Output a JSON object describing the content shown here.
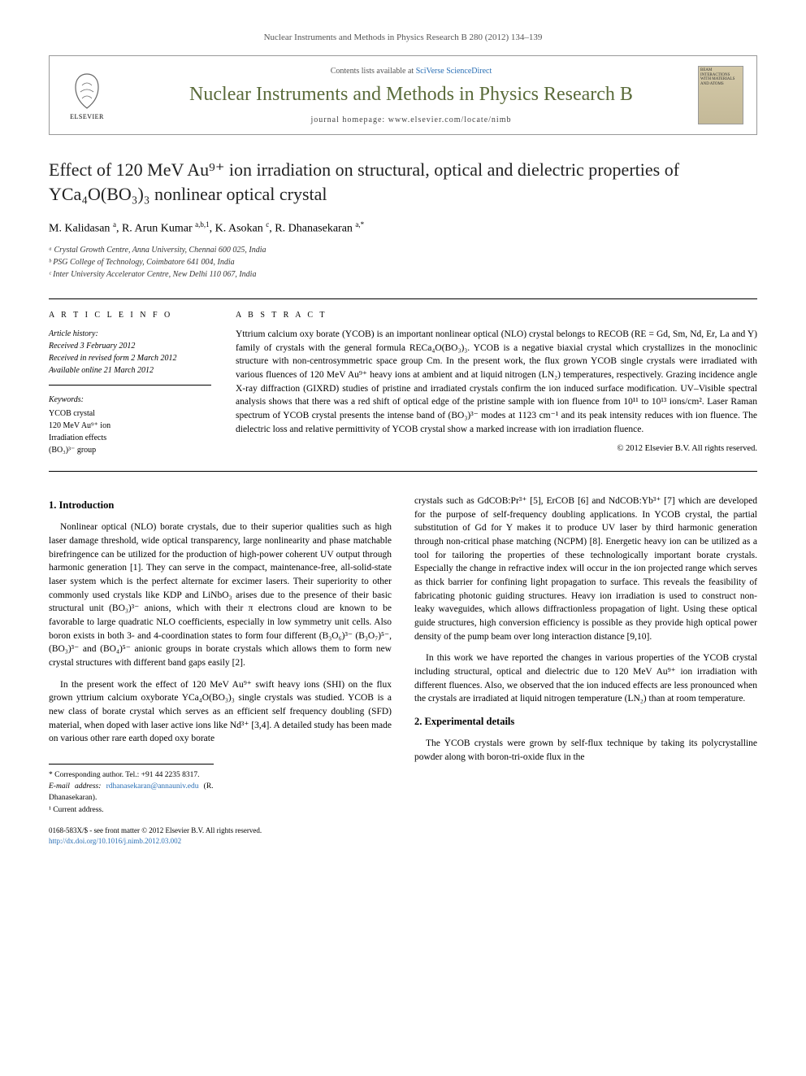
{
  "journal_ref": "Nuclear Instruments and Methods in Physics Research B 280 (2012) 134–139",
  "header": {
    "contents_prefix": "Contents lists available at ",
    "contents_link": "SciVerse ScienceDirect",
    "journal_title": "Nuclear Instruments and Methods in Physics Research B",
    "homepage_label": "journal homepage: ",
    "homepage_url": "www.elsevier.com/locate/nimb",
    "publisher": "ELSEVIER",
    "cover_text": "BEAM INTERACTIONS WITH MATERIALS AND ATOMS"
  },
  "title": "Effect of 120 MeV Au⁹⁺ ion irradiation on structural, optical and dielectric properties of YCa₄O(BO₃)₃ nonlinear optical crystal",
  "authors_html": "M. Kalidasan <sup>a</sup>, R. Arun Kumar <sup>a,b,1</sup>, K. Asokan <sup>c</sup>, R. Dhanasekaran <sup>a,*</sup>",
  "affiliations": [
    "ᵃ Crystal Growth Centre, Anna University, Chennai 600 025, India",
    "ᵇ PSG College of Technology, Coimbatore 641 004, India",
    "ᶜ Inter University Accelerator Centre, New Delhi 110 067, India"
  ],
  "article_info": {
    "heading": "A R T I C L E   I N F O",
    "history_label": "Article history:",
    "history": [
      "Received 3 February 2012",
      "Received in revised form 2 March 2012",
      "Available online 21 March 2012"
    ],
    "keywords_label": "Keywords:",
    "keywords": [
      "YCOB crystal",
      "120 MeV Au⁹⁺ ion",
      "Irradiation effects",
      "(BO₃)³⁻ group"
    ]
  },
  "abstract": {
    "heading": "A B S T R A C T",
    "text": "Yttrium calcium oxy borate (YCOB) is an important nonlinear optical (NLO) crystal belongs to RECOB (RE = Gd, Sm, Nd, Er, La and Y) family of crystals with the general formula RECa₄O(BO₃)₃. YCOB is a negative biaxial crystal which crystallizes in the monoclinic structure with non-centrosymmetric space group Cm. In the present work, the flux grown YCOB single crystals were irradiated with various fluences of 120 MeV Au⁹⁺ heavy ions at ambient and at liquid nitrogen (LN₂) temperatures, respectively. Grazing incidence angle X-ray diffraction (GIXRD) studies of pristine and irradiated crystals confirm the ion induced surface modification. UV–Visible spectral analysis shows that there was a red shift of optical edge of the pristine sample with ion fluence from 10¹¹ to 10¹³ ions/cm². Laser Raman spectrum of YCOB crystal presents the intense band of (BO₃)³⁻ modes at 1123 cm⁻¹ and its peak intensity reduces with ion fluence. The dielectric loss and relative permittivity of YCOB crystal show a marked increase with ion irradiation fluence.",
    "copyright": "© 2012 Elsevier B.V. All rights reserved."
  },
  "sections": {
    "intro_heading": "1. Introduction",
    "intro_p1": "Nonlinear optical (NLO) borate crystals, due to their superior qualities such as high laser damage threshold, wide optical transparency, large nonlinearity and phase matchable birefringence can be utilized for the production of high-power coherent UV output through harmonic generation [1]. They can serve in the compact, maintenance-free, all-solid-state laser system which is the perfect alternate for excimer lasers. Their superiority to other commonly used crystals like KDP and LiNbO₃ arises due to the presence of their basic structural unit (BO₃)³⁻ anions, which with their π electrons cloud are known to be favorable to large quadratic NLO coefficients, especially in low symmetry unit cells. Also boron exists in both 3- and 4-coordination states to form four different (B₃O₆)³⁻ (B₃O₇)⁵⁻, (BO₃)³⁻ and (BO₄)⁵⁻ anionic groups in borate crystals which allows them to form new crystal structures with different band gaps easily [2].",
    "intro_p2": "In the present work the effect of 120 MeV Au⁹⁺ swift heavy ions (SHI) on the flux grown yttrium calcium oxyborate YCa₄O(BO₃)₃ single crystals was studied. YCOB is a new class of borate crystal which serves as an efficient self frequency doubling (SFD) material, when doped with laser active ions like Nd³⁺ [3,4]. A detailed study has been made on various other rare earth doped oxy borate",
    "intro_p3": "crystals such as GdCOB:Pr³⁺ [5], ErCOB [6] and NdCOB:Yb³⁺ [7] which are developed for the purpose of self-frequency doubling applications. In YCOB crystal, the partial substitution of Gd for Y makes it to produce UV laser by third harmonic generation through non-critical phase matching (NCPM) [8]. Energetic heavy ion can be utilized as a tool for tailoring the properties of these technologically important borate crystals. Especially the change in refractive index will occur in the ion projected range which serves as thick barrier for confining light propagation to surface. This reveals the feasibility of fabricating photonic guiding structures. Heavy ion irradiation is used to construct non-leaky waveguides, which allows diffractionless propagation of light. Using these optical guide structures, high conversion efficiency is possible as they provide high optical power density of the pump beam over long interaction distance [9,10].",
    "intro_p4": "In this work we have reported the changes in various properties of the YCOB crystal including structural, optical and dielectric due to 120 MeV Au⁹⁺ ion irradiation with different fluences. Also, we observed that the ion induced effects are less pronounced when the crystals are irradiated at liquid nitrogen temperature (LN₂) than at room temperature.",
    "expt_heading": "2. Experimental details",
    "expt_p1": "The YCOB crystals were grown by self-flux technique by taking its polycrystalline powder along with boron-tri-oxide flux in the"
  },
  "footer": {
    "corr": "* Corresponding author. Tel.: +91 44 2235 8317.",
    "email_label": "E-mail address: ",
    "email": "rdhanasekaran@annauniv.edu",
    "email_who": " (R. Dhanasekaran).",
    "note1": "¹ Current address.",
    "pub_line1": "0168-583X/$ - see front matter © 2012 Elsevier B.V. All rights reserved.",
    "pub_line2": "http://dx.doi.org/10.1016/j.nimb.2012.03.002"
  },
  "colors": {
    "journal_title": "#5a6b3a",
    "link": "#2a6fb5",
    "text": "#000000",
    "border": "#999999"
  }
}
